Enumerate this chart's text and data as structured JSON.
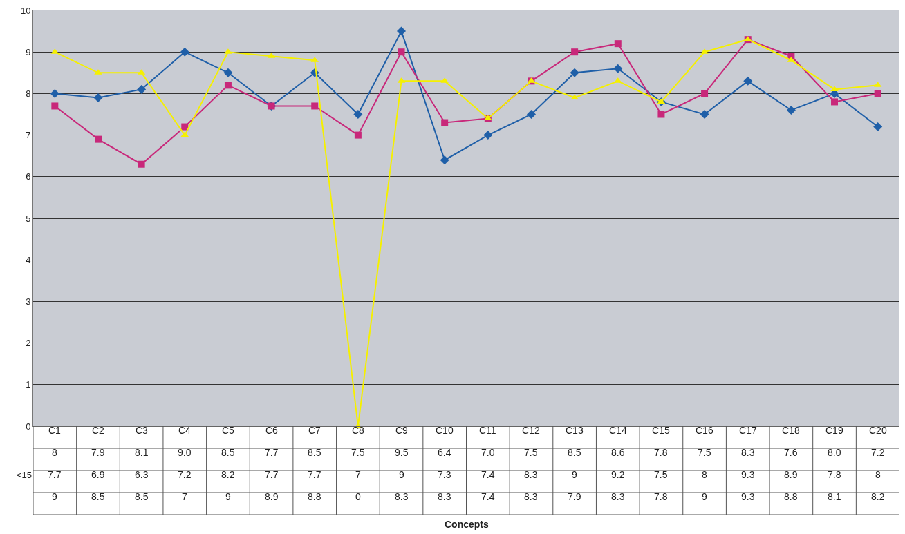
{
  "chart_data": {
    "type": "line",
    "annotations": [
      "Concepts"
    ],
    "categories": [
      "C1",
      "C2",
      "C3",
      "C4",
      "C5",
      "C6",
      "C7",
      "C8",
      "C9",
      "C10",
      "C11",
      "C12",
      "C13",
      "C14",
      "C15",
      "C16",
      "C17",
      "C18",
      "C19",
      "C20"
    ],
    "series": [
      {
        "color": "#1f5fa8",
        "marker": "diamond",
        "values": [
          8,
          7.9,
          8.1,
          9.0,
          8.5,
          7.7,
          8.5,
          7.5,
          9.5,
          6.4,
          7.0,
          7.5,
          8.5,
          8.6,
          7.8,
          7.5,
          8.3,
          7.6,
          8.0,
          7.2
        ],
        "value_labels": [
          "8",
          "7.9",
          "8.1",
          "9.0",
          "8.5",
          "7.7",
          "8.5",
          "7.5",
          "9.5",
          "6.4",
          "7.0",
          "7.5",
          "8.5",
          "8.6",
          "7.8",
          "7.5",
          "8.3",
          "7.6",
          "8.0",
          "7.2"
        ]
      },
      {
        "name": "<15",
        "color": "#c8287a",
        "marker": "square",
        "values": [
          7.7,
          6.9,
          6.3,
          7.2,
          8.2,
          7.7,
          7.7,
          7,
          9,
          7.3,
          7.4,
          8.3,
          9,
          9.2,
          7.5,
          8,
          9.3,
          8.9,
          7.8,
          8
        ],
        "value_labels": [
          "7.7",
          "6.9",
          "6.3",
          "7.2",
          "8.2",
          "7.7",
          "7.7",
          "7",
          "9",
          "7.3",
          "7.4",
          "8.3",
          "9",
          "9.2",
          "7.5",
          "8",
          "9.3",
          "8.9",
          "7.8",
          "8"
        ]
      },
      {
        "color": "#f5f000",
        "marker": "triangle",
        "values": [
          9,
          8.5,
          8.5,
          7,
          9,
          8.9,
          8.8,
          0,
          8.3,
          8.3,
          7.4,
          8.3,
          7.9,
          8.3,
          7.8,
          9,
          9.3,
          8.8,
          8.1,
          8.2
        ],
        "value_labels": [
          "9",
          "8.5",
          "8.5",
          "7",
          "9",
          "8.9",
          "8.8",
          "0",
          "8.3",
          "8.3",
          "7.4",
          "8.3",
          "7.9",
          "8.3",
          "7.8",
          "9",
          "9.3",
          "8.8",
          "8.1",
          "8.2"
        ]
      }
    ],
    "ylim": [
      0,
      10
    ],
    "yticks": [
      0,
      1,
      2,
      3,
      4,
      5,
      6,
      7,
      8,
      9,
      10
    ],
    "grid": "y",
    "legend": false,
    "tick_labels": "y",
    "line_style": "solid"
  }
}
